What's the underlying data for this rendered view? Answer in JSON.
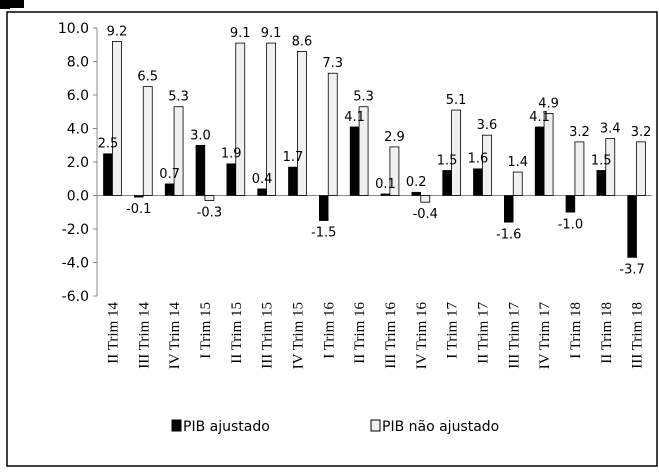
{
  "chart_data": {
    "type": "bar",
    "categories": [
      "II Trim 14",
      "III Trim 14",
      "IV Trim 14",
      "I Trim 15",
      "II Trim 15",
      "III Trim 15",
      "IV Trim 15",
      "I Trim 16",
      "II Trim 16",
      "III Trim 16",
      "IV Trim 16",
      "I Trim 17",
      "II Trim 17",
      "III Trim 17",
      "IV Trim 17",
      "I Trim 18",
      "II Trim 18",
      "III Trim 18"
    ],
    "series": [
      {
        "name": "PIB ajustado",
        "color": "#000000",
        "values": [
          2.5,
          -0.1,
          0.7,
          3.0,
          1.9,
          0.4,
          1.7,
          -1.5,
          4.1,
          0.1,
          0.2,
          1.5,
          1.6,
          -1.6,
          4.1,
          -1.0,
          1.5,
          -3.7
        ],
        "labels": [
          "2.5",
          "-0.1",
          "0.7",
          "3.0",
          "1.9",
          "0.4",
          "1.7",
          "-1.5",
          "4.1",
          "0.1",
          "0.2",
          "1.5",
          "1.6",
          "-1.6",
          "4.1",
          "-1.0",
          "1.5",
          "-3.7"
        ]
      },
      {
        "name": "PIB não ajustado",
        "color": "#f0f0f0",
        "values": [
          9.2,
          6.5,
          5.3,
          -0.3,
          9.1,
          9.1,
          8.6,
          7.3,
          5.3,
          2.9,
          -0.4,
          5.1,
          3.6,
          1.4,
          4.9,
          3.2,
          3.4,
          3.2
        ],
        "labels": [
          "9.2",
          "6.5",
          "5.3",
          "-0.3",
          "9.1",
          "9.1",
          "8.6",
          "7.3",
          "5.3",
          "2.9",
          "-0.4",
          "5.1",
          "3.6",
          "1.4",
          "4.9",
          "3.2",
          "3.4",
          "3.2"
        ]
      }
    ],
    "yticks": [
      "10.0",
      "8.0",
      "6.0",
      "4.0",
      "2.0",
      "0.0",
      "-2.0",
      "-4.0",
      "-6.0"
    ],
    "ylim": [
      -6,
      10
    ],
    "legend_position": "bottom",
    "grid": false,
    "title": "",
    "xlabel": "",
    "ylabel": ""
  }
}
